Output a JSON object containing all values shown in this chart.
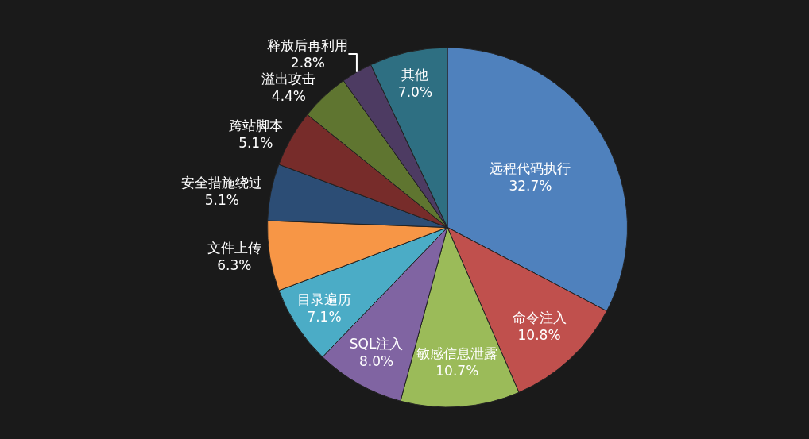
{
  "chart_data": {
    "type": "pie",
    "categories": [
      "远程代码执行",
      "命令注入",
      "敏感信息泄露",
      "SQL注入",
      "目录遍历",
      "文件上传",
      "安全措施绕过",
      "跨站脚本",
      "溢出攻击",
      "释放后再利用",
      "其他"
    ],
    "values": [
      32.7,
      10.8,
      10.7,
      8.0,
      7.1,
      6.3,
      5.1,
      5.1,
      4.4,
      2.8,
      7.0
    ],
    "value_labels": [
      "32.7%",
      "10.8%",
      "10.7%",
      "8.0%",
      "7.1%",
      "6.3%",
      "5.1%",
      "5.1%",
      "4.4%",
      "2.8%",
      "7.0%"
    ],
    "colors": [
      "#4f81bd",
      "#c0504d",
      "#9bbb59",
      "#8064a2",
      "#4bacc6",
      "#f79646",
      "#2c4d75",
      "#772c2a",
      "#5f7530",
      "#4d3b62",
      "#2e6f82"
    ],
    "legend": false
  }
}
